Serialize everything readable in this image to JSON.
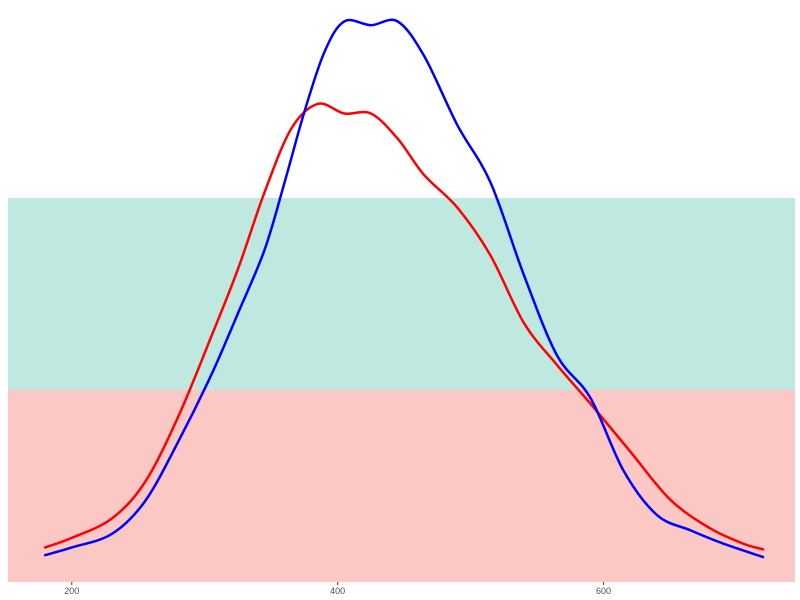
{
  "chart_data": {
    "type": "line",
    "xlim": [
      152,
      744
    ],
    "ylim": [
      0,
      3
    ],
    "x_ticks": [
      200,
      400,
      600
    ],
    "x_tick_labels": [
      "200",
      "400",
      "600"
    ],
    "grid": false,
    "legend": "none",
    "bands": [
      {
        "from": 0,
        "to": 1,
        "color": "#F8766D",
        "alpha": 0.4
      },
      {
        "from": 1,
        "to": 2,
        "color": "#00A383",
        "alpha": 0.25
      },
      {
        "from": 2,
        "to": 3,
        "color": "#FFFFFF",
        "alpha": 0.0
      }
    ],
    "series": [
      {
        "color": "#FF0000",
        "x": [
          180,
          200,
          230,
          255,
          280,
          305,
          325,
          345,
          365,
          385,
          405,
          425,
          445,
          465,
          490,
          515,
          540,
          565,
          590,
          620,
          650,
          680,
          705,
          720
        ],
        "y": [
          0.18,
          0.23,
          0.33,
          0.52,
          0.86,
          1.28,
          1.63,
          2.03,
          2.36,
          2.49,
          2.44,
          2.44,
          2.31,
          2.12,
          1.95,
          1.7,
          1.35,
          1.13,
          0.93,
          0.68,
          0.43,
          0.28,
          0.2,
          0.17
        ]
      },
      {
        "color": "#0000FF",
        "x": [
          180,
          200,
          230,
          255,
          280,
          305,
          325,
          345,
          360,
          375,
          390,
          405,
          425,
          445,
          465,
          490,
          515,
          540,
          565,
          590,
          615,
          640,
          665,
          690,
          720
        ],
        "y": [
          0.14,
          0.18,
          0.25,
          0.42,
          0.73,
          1.08,
          1.4,
          1.73,
          2.08,
          2.45,
          2.76,
          2.92,
          2.9,
          2.92,
          2.74,
          2.38,
          2.08,
          1.6,
          1.18,
          0.96,
          0.58,
          0.35,
          0.27,
          0.2,
          0.13
        ]
      }
    ]
  }
}
